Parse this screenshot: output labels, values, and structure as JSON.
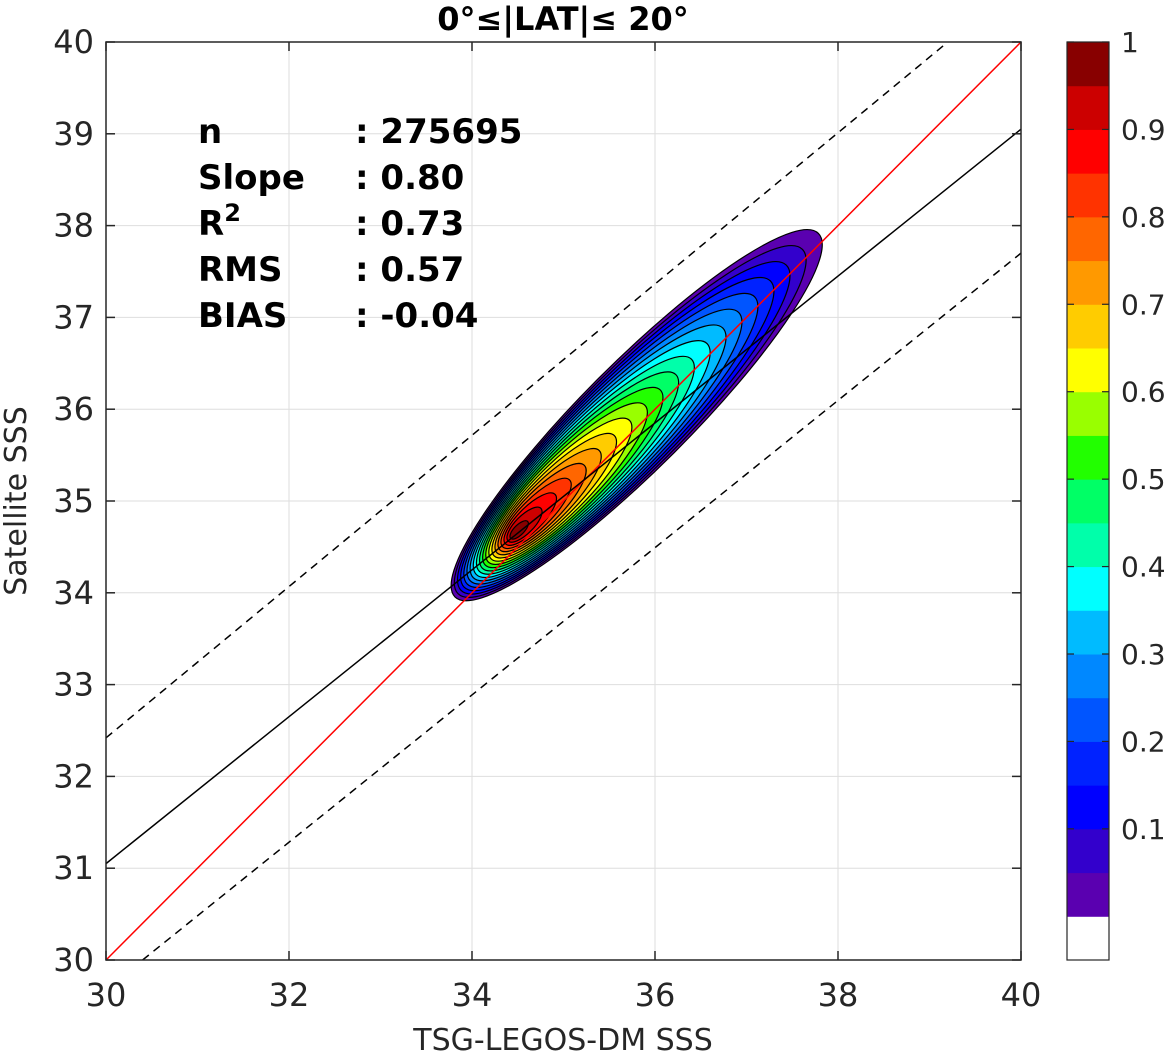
{
  "chart_data": {
    "type": "contour",
    "title": "0°≤|LAT|≤ 20°",
    "xlabel": "TSG-LEGOS-DM SSS",
    "ylabel": "Satellite SSS",
    "xlim": [
      30,
      40
    ],
    "ylim": [
      30,
      40
    ],
    "xticks": [
      "30",
      "32",
      "34",
      "36",
      "38",
      "40"
    ],
    "yticks": [
      "30",
      "31",
      "32",
      "33",
      "34",
      "35",
      "36",
      "37",
      "38",
      "39",
      "40"
    ],
    "grid": true,
    "stats": [
      {
        "label": "n",
        "value": ": 275695"
      },
      {
        "label": "Slope",
        "value": ": 0.80"
      },
      {
        "label": "R",
        "sup": "2",
        "value": ": 0.73"
      },
      {
        "label": "RMS",
        "value": ": 0.57"
      },
      {
        "label": "BIAS",
        "value": ": -0.04"
      }
    ],
    "lines": [
      {
        "name": "one-to-one",
        "color": "#ff0000",
        "style": "solid",
        "points": [
          [
            30,
            30
          ],
          [
            40,
            40
          ]
        ]
      },
      {
        "name": "regression",
        "color": "#000000",
        "style": "solid",
        "points": [
          [
            30,
            31.05
          ],
          [
            40,
            39.05
          ]
        ]
      },
      {
        "name": "upper-bound",
        "color": "#000000",
        "style": "dashed",
        "points": [
          [
            30,
            32.42
          ],
          [
            39.2,
            40
          ]
        ]
      },
      {
        "name": "lower-bound",
        "color": "#000000",
        "style": "dashed",
        "points": [
          [
            30.4,
            30
          ],
          [
            40,
            37.7
          ]
        ]
      }
    ],
    "density": {
      "peak": [
        34.45,
        34.62
      ],
      "ridge_end": [
        37.15,
        37.25
      ],
      "axis_angle_deg": 45
    },
    "colorbar": {
      "ticks": [
        "0.1",
        "0.2",
        "0.3",
        "0.4",
        "0.5",
        "0.6",
        "0.7",
        "0.8",
        "0.9",
        "1"
      ],
      "levels": [
        "#ffffff",
        "#5a00b0",
        "#3300cc",
        "#0000ff",
        "#0022ff",
        "#0055ff",
        "#0088ff",
        "#00bbff",
        "#00ffff",
        "#00ffaa",
        "#00ff66",
        "#22ff00",
        "#99ff00",
        "#ffff00",
        "#ffcc00",
        "#ff9900",
        "#ff6600",
        "#ff3300",
        "#ff0000",
        "#cc0000",
        "#880000"
      ]
    }
  }
}
